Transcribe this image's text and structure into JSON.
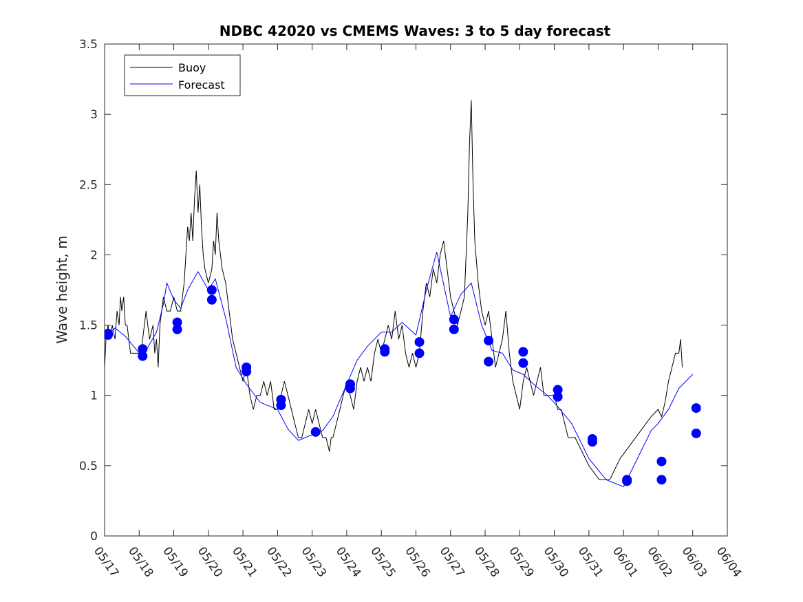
{
  "chart_data": {
    "type": "line",
    "title": "NDBC 42020 vs CMEMS Waves: 3 to 5 day forecast",
    "xlabel": "",
    "ylabel": "Wave height, m",
    "x_unit": "day",
    "xlim": [
      "05/17",
      "06/04"
    ],
    "ylim": [
      0,
      3.5
    ],
    "y_ticks": [
      "0",
      "0.5",
      "1",
      "1.5",
      "2",
      "2.5",
      "3",
      "3.5"
    ],
    "x_ticks": [
      "05/17",
      "05/18",
      "05/19",
      "05/20",
      "05/21",
      "05/22",
      "05/23",
      "05/24",
      "05/25",
      "05/26",
      "05/27",
      "05/28",
      "05/29",
      "05/30",
      "05/31",
      "06/01",
      "06/02",
      "06/03",
      "06/04"
    ],
    "grid": false,
    "legend_position": "top-left",
    "colors": {
      "buoy": "#000000",
      "forecast": "#0000ff"
    },
    "series": [
      {
        "name": "Buoy",
        "color": "#000000",
        "points": [
          [
            0,
            1.2
          ],
          [
            0.04,
            1.4
          ],
          [
            0.1,
            1.5
          ],
          [
            0.16,
            1.4
          ],
          [
            0.22,
            1.5
          ],
          [
            0.3,
            1.4
          ],
          [
            0.36,
            1.6
          ],
          [
            0.42,
            1.5
          ],
          [
            0.46,
            1.7
          ],
          [
            0.5,
            1.6
          ],
          [
            0.55,
            1.7
          ],
          [
            0.6,
            1.5
          ],
          [
            0.65,
            1.5
          ],
          [
            0.7,
            1.4
          ],
          [
            0.75,
            1.3
          ],
          [
            0.85,
            1.3
          ],
          [
            0.95,
            1.3
          ],
          [
            1.05,
            1.3
          ],
          [
            1.1,
            1.4
          ],
          [
            1.15,
            1.5
          ],
          [
            1.2,
            1.6
          ],
          [
            1.25,
            1.5
          ],
          [
            1.3,
            1.4
          ],
          [
            1.4,
            1.5
          ],
          [
            1.45,
            1.3
          ],
          [
            1.5,
            1.4
          ],
          [
            1.55,
            1.2
          ],
          [
            1.6,
            1.5
          ],
          [
            1.65,
            1.6
          ],
          [
            1.7,
            1.7
          ],
          [
            1.8,
            1.6
          ],
          [
            1.9,
            1.6
          ],
          [
            2.0,
            1.7
          ],
          [
            2.1,
            1.6
          ],
          [
            2.2,
            1.6
          ],
          [
            2.25,
            1.7
          ],
          [
            2.3,
            1.8
          ],
          [
            2.35,
            2.0
          ],
          [
            2.4,
            2.2
          ],
          [
            2.45,
            2.1
          ],
          [
            2.5,
            2.3
          ],
          [
            2.55,
            2.1
          ],
          [
            2.6,
            2.4
          ],
          [
            2.65,
            2.6
          ],
          [
            2.7,
            2.3
          ],
          [
            2.75,
            2.5
          ],
          [
            2.8,
            2.2
          ],
          [
            2.85,
            2.0
          ],
          [
            2.9,
            1.9
          ],
          [
            3.0,
            1.8
          ],
          [
            3.1,
            1.9
          ],
          [
            3.15,
            2.1
          ],
          [
            3.2,
            2.0
          ],
          [
            3.25,
            2.3
          ],
          [
            3.3,
            2.1
          ],
          [
            3.35,
            2.0
          ],
          [
            3.4,
            1.9
          ],
          [
            3.5,
            1.8
          ],
          [
            3.6,
            1.6
          ],
          [
            3.7,
            1.4
          ],
          [
            3.8,
            1.3
          ],
          [
            3.9,
            1.2
          ],
          [
            4.0,
            1.1
          ],
          [
            4.1,
            1.2
          ],
          [
            4.2,
            1.0
          ],
          [
            4.3,
            0.9
          ],
          [
            4.4,
            1.0
          ],
          [
            4.5,
            1.0
          ],
          [
            4.6,
            1.1
          ],
          [
            4.7,
            1.0
          ],
          [
            4.8,
            1.1
          ],
          [
            4.9,
            0.9
          ],
          [
            5.0,
            0.9
          ],
          [
            5.1,
            1.0
          ],
          [
            5.2,
            1.1
          ],
          [
            5.3,
            1.0
          ],
          [
            5.4,
            0.9
          ],
          [
            5.5,
            0.8
          ],
          [
            5.6,
            0.7
          ],
          [
            5.7,
            0.7
          ],
          [
            5.8,
            0.8
          ],
          [
            5.9,
            0.9
          ],
          [
            6.0,
            0.8
          ],
          [
            6.1,
            0.9
          ],
          [
            6.2,
            0.8
          ],
          [
            6.3,
            0.7
          ],
          [
            6.4,
            0.7
          ],
          [
            6.5,
            0.6
          ],
          [
            6.55,
            0.7
          ],
          [
            6.6,
            0.7
          ],
          [
            6.7,
            0.8
          ],
          [
            6.8,
            0.9
          ],
          [
            6.9,
            1.0
          ],
          [
            7.0,
            1.1
          ],
          [
            7.1,
            1.0
          ],
          [
            7.2,
            0.9
          ],
          [
            7.3,
            1.1
          ],
          [
            7.4,
            1.2
          ],
          [
            7.5,
            1.1
          ],
          [
            7.6,
            1.2
          ],
          [
            7.7,
            1.1
          ],
          [
            7.8,
            1.3
          ],
          [
            7.9,
            1.4
          ],
          [
            8.0,
            1.3
          ],
          [
            8.1,
            1.4
          ],
          [
            8.2,
            1.5
          ],
          [
            8.3,
            1.4
          ],
          [
            8.4,
            1.6
          ],
          [
            8.5,
            1.4
          ],
          [
            8.6,
            1.5
          ],
          [
            8.7,
            1.3
          ],
          [
            8.8,
            1.2
          ],
          [
            8.9,
            1.3
          ],
          [
            9.0,
            1.2
          ],
          [
            9.1,
            1.3
          ],
          [
            9.2,
            1.6
          ],
          [
            9.3,
            1.8
          ],
          [
            9.4,
            1.7
          ],
          [
            9.5,
            1.9
          ],
          [
            9.6,
            1.8
          ],
          [
            9.7,
            2.0
          ],
          [
            9.8,
            2.1
          ],
          [
            9.9,
            1.9
          ],
          [
            10.0,
            1.7
          ],
          [
            10.1,
            1.6
          ],
          [
            10.2,
            1.5
          ],
          [
            10.3,
            1.6
          ],
          [
            10.4,
            1.7
          ],
          [
            10.5,
            2.3
          ],
          [
            10.55,
            2.8
          ],
          [
            10.6,
            3.1
          ],
          [
            10.65,
            2.5
          ],
          [
            10.7,
            2.1
          ],
          [
            10.8,
            1.8
          ],
          [
            10.9,
            1.6
          ],
          [
            11.0,
            1.5
          ],
          [
            11.1,
            1.6
          ],
          [
            11.2,
            1.4
          ],
          [
            11.3,
            1.2
          ],
          [
            11.4,
            1.3
          ],
          [
            11.5,
            1.4
          ],
          [
            11.6,
            1.6
          ],
          [
            11.7,
            1.3
          ],
          [
            11.8,
            1.1
          ],
          [
            11.9,
            1.0
          ],
          [
            12.0,
            0.9
          ],
          [
            12.1,
            1.1
          ],
          [
            12.2,
            1.2
          ],
          [
            12.3,
            1.1
          ],
          [
            12.4,
            1.0
          ],
          [
            12.5,
            1.1
          ],
          [
            12.6,
            1.2
          ],
          [
            12.7,
            1.0
          ],
          [
            12.8,
            1.0
          ],
          [
            12.9,
            1.0
          ],
          [
            13.0,
            1.0
          ],
          [
            13.1,
            0.9
          ],
          [
            13.2,
            0.9
          ],
          [
            13.3,
            0.8
          ],
          [
            13.4,
            0.7
          ],
          [
            13.6,
            0.7
          ],
          [
            13.8,
            0.6
          ],
          [
            14.0,
            0.5
          ],
          [
            14.3,
            0.4
          ],
          [
            14.6,
            0.4
          ],
          [
            14.9,
            0.55
          ],
          [
            15.2,
            0.65
          ],
          [
            15.5,
            0.75
          ],
          [
            15.8,
            0.85
          ],
          [
            16.0,
            0.9
          ],
          [
            16.1,
            0.85
          ],
          [
            16.2,
            0.95
          ],
          [
            16.3,
            1.1
          ],
          [
            16.4,
            1.2
          ],
          [
            16.5,
            1.3
          ],
          [
            16.6,
            1.3
          ],
          [
            16.65,
            1.4
          ],
          [
            16.7,
            1.2
          ]
        ]
      },
      {
        "name": "Forecast",
        "color": "#0000ff",
        "points": [
          [
            0.0,
            1.4
          ],
          [
            0.3,
            1.48
          ],
          [
            0.6,
            1.42
          ],
          [
            1.0,
            1.3
          ],
          [
            1.2,
            1.32
          ],
          [
            1.5,
            1.45
          ],
          [
            1.7,
            1.65
          ],
          [
            1.8,
            1.8
          ],
          [
            2.0,
            1.68
          ],
          [
            2.2,
            1.62
          ],
          [
            2.4,
            1.75
          ],
          [
            2.7,
            1.88
          ],
          [
            3.0,
            1.75
          ],
          [
            3.2,
            1.83
          ],
          [
            3.5,
            1.55
          ],
          [
            3.8,
            1.2
          ],
          [
            4.1,
            1.08
          ],
          [
            4.5,
            0.95
          ],
          [
            5.0,
            0.9
          ],
          [
            5.3,
            0.76
          ],
          [
            5.6,
            0.68
          ],
          [
            6.0,
            0.72
          ],
          [
            6.3,
            0.75
          ],
          [
            6.6,
            0.85
          ],
          [
            7.0,
            1.08
          ],
          [
            7.3,
            1.25
          ],
          [
            7.6,
            1.35
          ],
          [
            8.0,
            1.45
          ],
          [
            8.3,
            1.45
          ],
          [
            8.6,
            1.52
          ],
          [
            9.0,
            1.43
          ],
          [
            9.3,
            1.75
          ],
          [
            9.6,
            2.02
          ],
          [
            10.0,
            1.56
          ],
          [
            10.3,
            1.72
          ],
          [
            10.6,
            1.8
          ],
          [
            10.9,
            1.5
          ],
          [
            11.2,
            1.32
          ],
          [
            11.5,
            1.3
          ],
          [
            11.8,
            1.18
          ],
          [
            12.1,
            1.15
          ],
          [
            12.4,
            1.08
          ],
          [
            12.8,
            1.0
          ],
          [
            13.1,
            0.92
          ],
          [
            13.5,
            0.8
          ],
          [
            14.0,
            0.55
          ],
          [
            14.5,
            0.4
          ],
          [
            15.0,
            0.35
          ],
          [
            15.2,
            0.45
          ],
          [
            15.5,
            0.6
          ],
          [
            15.8,
            0.75
          ],
          [
            16.0,
            0.8
          ],
          [
            16.3,
            0.9
          ],
          [
            16.6,
            1.05
          ],
          [
            17.0,
            1.15
          ]
        ]
      }
    ],
    "markers": [
      [
        0.1,
        1.43
      ],
      [
        0.1,
        1.44
      ],
      [
        1.1,
        1.28
      ],
      [
        1.1,
        1.33
      ],
      [
        2.1,
        1.47
      ],
      [
        2.1,
        1.52
      ],
      [
        3.1,
        1.68
      ],
      [
        3.1,
        1.75
      ],
      [
        4.1,
        1.17
      ],
      [
        4.1,
        1.2
      ],
      [
        5.1,
        0.93
      ],
      [
        5.1,
        0.97
      ],
      [
        6.1,
        0.74
      ],
      [
        7.1,
        1.05
      ],
      [
        7.1,
        1.08
      ],
      [
        8.1,
        1.31
      ],
      [
        8.1,
        1.33
      ],
      [
        9.1,
        1.3
      ],
      [
        9.1,
        1.38
      ],
      [
        10.1,
        1.47
      ],
      [
        10.1,
        1.54
      ],
      [
        11.1,
        1.24
      ],
      [
        11.1,
        1.39
      ],
      [
        12.1,
        1.23
      ],
      [
        12.1,
        1.31
      ],
      [
        13.1,
        0.99
      ],
      [
        13.1,
        1.04
      ],
      [
        14.1,
        0.67
      ],
      [
        14.1,
        0.69
      ],
      [
        15.1,
        0.39
      ],
      [
        15.1,
        0.4
      ],
      [
        16.1,
        0.4
      ],
      [
        16.1,
        0.53
      ],
      [
        17.1,
        0.73
      ],
      [
        17.1,
        0.91
      ]
    ]
  },
  "legend": {
    "entries": [
      {
        "label": "Buoy",
        "color": "#000000"
      },
      {
        "label": "Forecast",
        "color": "#0000ff"
      }
    ]
  }
}
